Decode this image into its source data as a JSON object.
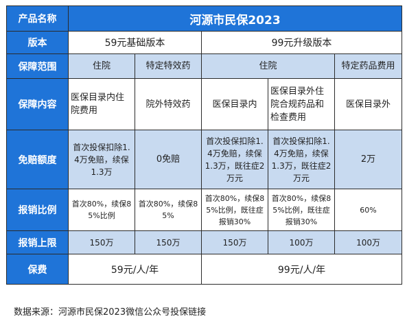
{
  "table": {
    "header": {
      "label": "产品名称",
      "title": "河源市民保2023"
    },
    "version": {
      "label": "版本",
      "basic": "59元基础版本",
      "upgrade": "99元升级版本"
    },
    "scope": {
      "label": "保障范围",
      "c1": "住院",
      "c2": "特定特效药",
      "c3": "住院",
      "c5": "特定药品费用"
    },
    "content": {
      "label": "保障内容",
      "c1": "医保目录内住院费用",
      "c2": "院外特效药",
      "c3": "医保目录内",
      "c4": "医保目录外住院合规药品和检查费用",
      "c5": "医保目录外"
    },
    "deductible": {
      "label": "免赔额度",
      "c1": "首次投保扣除1.4万免赔，续保1.3万",
      "c2": "0免赔",
      "c3": "首次投保扣除1.4万免赔，续保1.3万，既往症2万元",
      "c4": "首次投保扣除1.4万免赔，续保1.3万，既往症2万元",
      "c5": "2万"
    },
    "ratio": {
      "label": "报销比例",
      "c1": "首次80%，续保85%比例",
      "c2": "首次80%，续保85%",
      "c3": "首次80%，续保85%比例，既往症报销30%",
      "c4": "首次80%，续保85%比例，既往症报销30%",
      "c5": "60%"
    },
    "limit": {
      "label": "报销上限",
      "c1": "150万",
      "c2": "150万",
      "c3": "150万",
      "c4": "100万",
      "c5": "100万"
    },
    "premium": {
      "label": "保费",
      "basic": "59元/人/年",
      "upgrade": "99元/人/年"
    }
  },
  "source": "数据来源：河源市民保2023微信公众号投保链接"
}
